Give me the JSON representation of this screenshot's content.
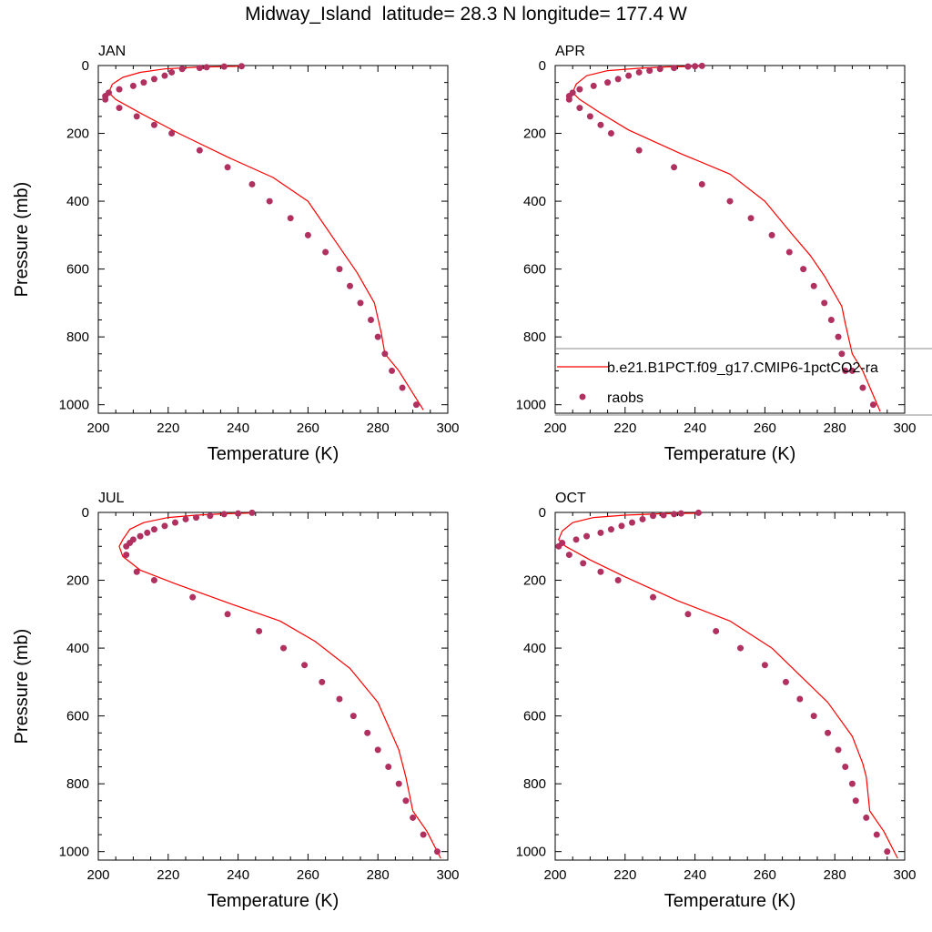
{
  "title": "Midway_Island  latitude= 28.3 N longitude= 177.4 W",
  "colors": {
    "model_line": "#ff0000",
    "obs_marker": "#b03060",
    "axis": "#000000"
  },
  "legend": {
    "model_label": "b.e21.B1PCT.f09_g17.CMIP6-1pctCO2-ra",
    "obs_label": "raobs"
  },
  "chart_data": [
    {
      "type": "line+scatter",
      "panel": "JAN",
      "title": "JAN",
      "xlabel": "Temperature (K)",
      "ylabel": "Pressure (mb)",
      "xlim": [
        200,
        300
      ],
      "ylim": [
        1025,
        0
      ],
      "xticks": [
        200,
        220,
        240,
        260,
        280,
        300
      ],
      "yticks": [
        0,
        200,
        400,
        600,
        800,
        1000
      ],
      "series": [
        {
          "name": "b.e21.B1PCT.f09_g17.CMIP6-1pctCO2-ra",
          "kind": "line",
          "x": [
            241,
            228,
            219,
            212,
            207,
            204,
            203,
            205,
            212,
            223,
            237,
            250,
            260,
            268,
            274,
            279,
            281,
            282,
            286,
            293
          ],
          "y": [
            2,
            5,
            10,
            20,
            35,
            55,
            80,
            100,
            140,
            200,
            270,
            330,
            400,
            520,
            610,
            700,
            790,
            850,
            900,
            1015
          ]
        },
        {
          "name": "raobs",
          "kind": "scatter",
          "x": [
            241,
            236,
            231,
            229,
            224,
            221,
            219,
            216,
            213,
            210,
            206,
            203,
            202,
            202,
            206,
            211,
            216,
            221,
            229,
            237,
            244,
            249,
            255,
            260,
            265,
            269,
            272,
            275,
            278,
            280,
            282,
            284,
            287,
            291
          ],
          "y": [
            2,
            3,
            5,
            7,
            10,
            20,
            30,
            40,
            50,
            60,
            70,
            80,
            90,
            100,
            125,
            150,
            175,
            200,
            250,
            300,
            350,
            400,
            450,
            500,
            550,
            600,
            650,
            700,
            750,
            800,
            850,
            900,
            950,
            1000
          ]
        }
      ]
    },
    {
      "type": "line+scatter",
      "panel": "APR",
      "title": "APR",
      "xlabel": "Temperature (K)",
      "ylabel": "",
      "xlim": [
        200,
        300
      ],
      "ylim": [
        1025,
        0
      ],
      "xticks": [
        200,
        220,
        240,
        260,
        280,
        300
      ],
      "yticks": [
        0,
        200,
        400,
        600,
        800,
        1000
      ],
      "series": [
        {
          "name": "b.e21.B1PCT.f09_g17.CMIP6-1pctCO2-ra",
          "kind": "line",
          "x": [
            242,
            232,
            224,
            215,
            209,
            206,
            205,
            207,
            213,
            221,
            236,
            250,
            260,
            268,
            273,
            277,
            282,
            283,
            285,
            288,
            293
          ],
          "y": [
            2,
            4,
            8,
            15,
            30,
            55,
            80,
            100,
            140,
            190,
            260,
            320,
            400,
            500,
            560,
            620,
            710,
            760,
            850,
            900,
            1020
          ]
        },
        {
          "name": "raobs",
          "kind": "scatter",
          "x": [
            242,
            240,
            238,
            234,
            230,
            227,
            224,
            221,
            218,
            215,
            211,
            207,
            205,
            204,
            204,
            207,
            210,
            213,
            216,
            224,
            234,
            242,
            250,
            256,
            262,
            267,
            271,
            274,
            277,
            279,
            281,
            282,
            283,
            285,
            288,
            291
          ],
          "y": [
            1,
            2,
            3,
            7,
            10,
            15,
            20,
            30,
            40,
            50,
            60,
            70,
            80,
            90,
            100,
            125,
            150,
            175,
            200,
            250,
            300,
            350,
            400,
            450,
            500,
            550,
            600,
            650,
            700,
            750,
            800,
            850,
            900,
            900,
            950,
            1000
          ]
        }
      ]
    },
    {
      "type": "line+scatter",
      "panel": "JUL",
      "title": "JUL",
      "xlabel": "Temperature (K)",
      "ylabel": "Pressure (mb)",
      "xlim": [
        200,
        300
      ],
      "ylim": [
        1025,
        0
      ],
      "xticks": [
        200,
        220,
        240,
        260,
        280,
        300
      ],
      "yticks": [
        0,
        200,
        400,
        600,
        800,
        1000
      ],
      "series": [
        {
          "name": "b.e21.B1PCT.f09_g17.CMIP6-1pctCO2-ra",
          "kind": "line",
          "x": [
            244,
            236,
            228,
            220,
            213,
            209,
            207,
            206,
            207,
            212,
            222,
            238,
            252,
            262,
            272,
            280,
            286,
            288,
            290,
            294,
            298
          ],
          "y": [
            2,
            4,
            8,
            15,
            30,
            50,
            80,
            100,
            130,
            170,
            210,
            270,
            320,
            380,
            460,
            560,
            700,
            780,
            880,
            940,
            1020
          ]
        },
        {
          "name": "raobs",
          "kind": "scatter",
          "x": [
            244,
            240,
            236,
            232,
            228,
            225,
            222,
            219,
            216,
            214,
            212,
            210,
            209,
            208,
            208,
            211,
            216,
            227,
            237,
            246,
            253,
            259,
            264,
            269,
            273,
            277,
            280,
            283,
            286,
            288,
            290,
            293,
            297
          ],
          "y": [
            1,
            3,
            5,
            10,
            15,
            20,
            30,
            40,
            50,
            60,
            70,
            80,
            90,
            100,
            125,
            175,
            200,
            250,
            300,
            350,
            400,
            450,
            500,
            550,
            600,
            650,
            700,
            750,
            800,
            850,
            900,
            950,
            1000
          ]
        }
      ]
    },
    {
      "type": "line+scatter",
      "panel": "OCT",
      "title": "OCT",
      "xlabel": "Temperature (K)",
      "ylabel": "",
      "xlim": [
        200,
        300
      ],
      "ylim": [
        1025,
        0
      ],
      "xticks": [
        200,
        220,
        240,
        260,
        280,
        300
      ],
      "yticks": [
        0,
        200,
        400,
        600,
        800,
        1000
      ],
      "series": [
        {
          "name": "b.e21.B1PCT.f09_g17.CMIP6-1pctCO2-ra",
          "kind": "line",
          "x": [
            242,
            230,
            220,
            211,
            205,
            202,
            201,
            203,
            210,
            220,
            235,
            250,
            262,
            270,
            278,
            285,
            288,
            289,
            290,
            294,
            298
          ],
          "y": [
            2,
            4,
            8,
            15,
            30,
            55,
            80,
            100,
            140,
            190,
            260,
            320,
            400,
            480,
            560,
            660,
            740,
            780,
            880,
            940,
            1020
          ]
        },
        {
          "name": "raobs",
          "kind": "scatter",
          "x": [
            241,
            236,
            234,
            231,
            228,
            225,
            222,
            219,
            216,
            213,
            209,
            206,
            202,
            201,
            204,
            208,
            213,
            218,
            228,
            238,
            246,
            253,
            260,
            266,
            270,
            274,
            278,
            281,
            283,
            285,
            286,
            289,
            292,
            295
          ],
          "y": [
            1,
            3,
            5,
            8,
            10,
            20,
            30,
            40,
            50,
            60,
            70,
            80,
            90,
            100,
            125,
            150,
            175,
            200,
            250,
            300,
            350,
            400,
            450,
            500,
            550,
            600,
            650,
            700,
            750,
            800,
            850,
            900,
            950,
            1000
          ]
        }
      ]
    }
  ]
}
